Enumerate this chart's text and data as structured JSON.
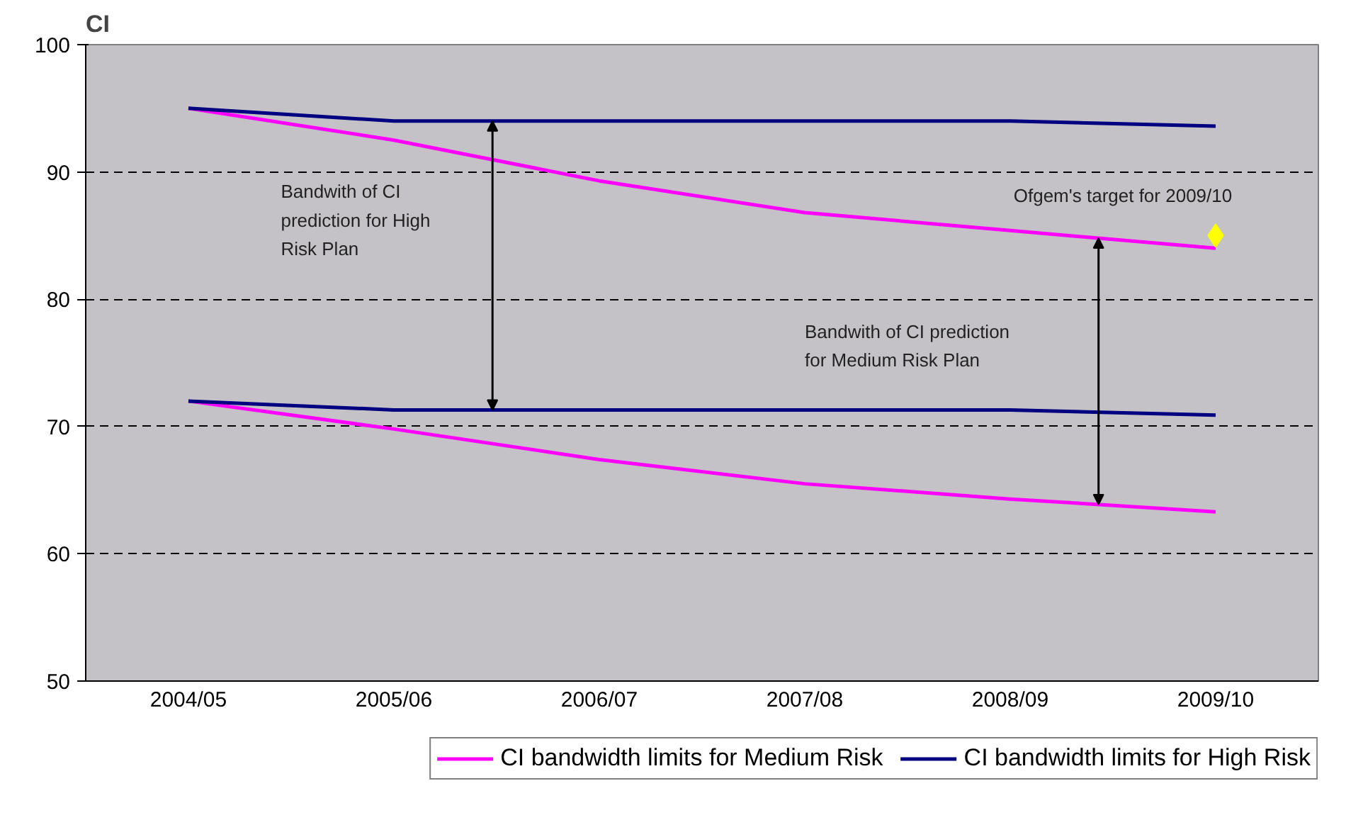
{
  "chart_data": {
    "type": "line",
    "ylabel": "CI",
    "categories": [
      "2004/05",
      "2005/06",
      "2006/07",
      "2007/08",
      "2008/09",
      "2009/10"
    ],
    "ylim": [
      50,
      100
    ],
    "yticks": [
      50,
      60,
      70,
      80,
      90,
      100
    ],
    "grid": "y",
    "legend": "bottom",
    "line_style": "solid",
    "series": [
      {
        "name": "CI bandwidth limits for Medium Risk",
        "color": "#ff00ff",
        "values": [
          95,
          92.5,
          89.3,
          86.8,
          85.4,
          84.0
        ]
      },
      {
        "color": "#ff00ff",
        "values": [
          72,
          69.8,
          67.4,
          65.5,
          64.3,
          63.3
        ]
      },
      {
        "name": "CI bandwidth limits for High Risk",
        "color": "#000080",
        "values": [
          95,
          94.0,
          94.0,
          94.0,
          94.0,
          93.6
        ]
      },
      {
        "color": "#000080",
        "values": [
          72,
          71.3,
          71.3,
          71.3,
          71.3,
          70.9
        ]
      },
      {
        "type": "scatter",
        "marker": "diamond",
        "color": "#ffff00",
        "x": [
          "2009/10"
        ],
        "values": [
          85
        ]
      }
    ],
    "annotations": [
      {
        "text": "Bandwith of CI\nprediction for High\nRisk Plan"
      },
      {
        "text": "Bandwith of CI prediction\nfor Medium Risk Plan"
      },
      {
        "text": "Ofgem's target for 2009/10",
        "x": "2009/10",
        "y": 85
      }
    ]
  }
}
